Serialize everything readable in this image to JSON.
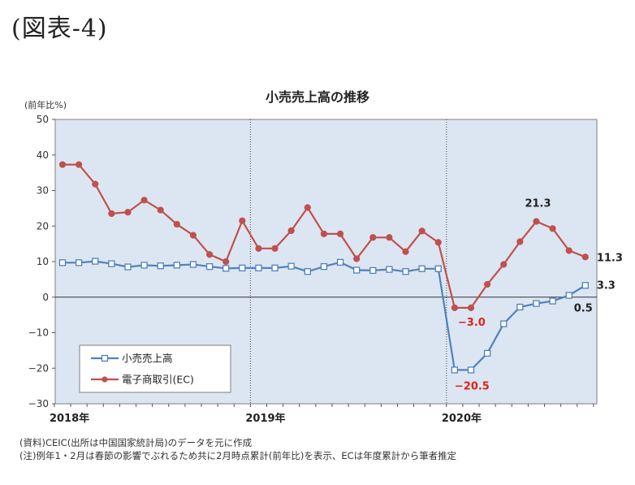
{
  "figure_label": "(図表-4)",
  "chart_data": {
    "type": "line",
    "title": "小売売上高の推移",
    "ylabel": "(前年比%)",
    "ylim": [
      -30,
      50
    ],
    "yticks": [
      50,
      40,
      30,
      20,
      10,
      0,
      -10,
      -20,
      -30
    ],
    "year_labels": [
      "2018年",
      "2019年",
      "2020年"
    ],
    "periods": [
      "2018-01",
      "2018-02",
      "2018-03",
      "2018-04",
      "2018-05",
      "2018-06",
      "2018-07",
      "2018-08",
      "2018-09",
      "2018-10",
      "2018-11",
      "2018-12",
      "2019-01",
      "2019-02",
      "2019-03",
      "2019-04",
      "2019-05",
      "2019-06",
      "2019-07",
      "2019-08",
      "2019-09",
      "2019-10",
      "2019-11",
      "2019-12",
      "2020-01",
      "2020-02",
      "2020-03",
      "2020-04",
      "2020-05",
      "2020-06",
      "2020-07",
      "2020-08",
      "2020-09"
    ],
    "legend_position": "bottom-left",
    "series": [
      {
        "name": "小売売上高",
        "color": "#4f81bd",
        "marker": "square",
        "values": [
          9.7,
          9.7,
          10.1,
          9.4,
          8.5,
          9.0,
          8.8,
          9.0,
          9.2,
          8.6,
          8.1,
          8.2,
          8.2,
          8.2,
          8.7,
          7.2,
          8.6,
          9.8,
          7.6,
          7.5,
          7.8,
          7.2,
          8.0,
          8.0,
          -20.5,
          -20.5,
          -15.8,
          -7.5,
          -2.8,
          -1.8,
          -1.1,
          0.5,
          3.3
        ]
      },
      {
        "name": "電子商取引(EC)",
        "color": "#c0504d",
        "marker": "circle",
        "values": [
          37.3,
          37.3,
          31.8,
          23.5,
          23.9,
          27.3,
          24.5,
          20.5,
          17.4,
          12.0,
          10.0,
          21.5,
          13.7,
          13.7,
          18.7,
          25.2,
          17.8,
          17.8,
          10.8,
          16.8,
          16.8,
          12.8,
          18.6,
          15.4,
          -3.0,
          -3.0,
          3.6,
          9.2,
          15.6,
          21.3,
          19.3,
          13.1,
          11.3
        ]
      }
    ],
    "annotations": [
      {
        "text": "21.3",
        "series": 1,
        "index": 29
      },
      {
        "text": "11.3",
        "series": 1,
        "index": 32
      },
      {
        "text": "-3.0",
        "series": 1,
        "index": 24
      },
      {
        "text": "3.3",
        "series": 0,
        "index": 32
      },
      {
        "text": "0.5",
        "series": 0,
        "index": 31
      },
      {
        "text": "-20.5",
        "series": 0,
        "index": 24
      }
    ]
  },
  "notes": [
    "(資料)CEIC(出所は中国国家統計局)のデータを元に作成",
    "(注)例年1・2月は春節の影響でぶれるため共に2月時点累計(前年比)を表示、ECは年度累計から筆者推定"
  ]
}
